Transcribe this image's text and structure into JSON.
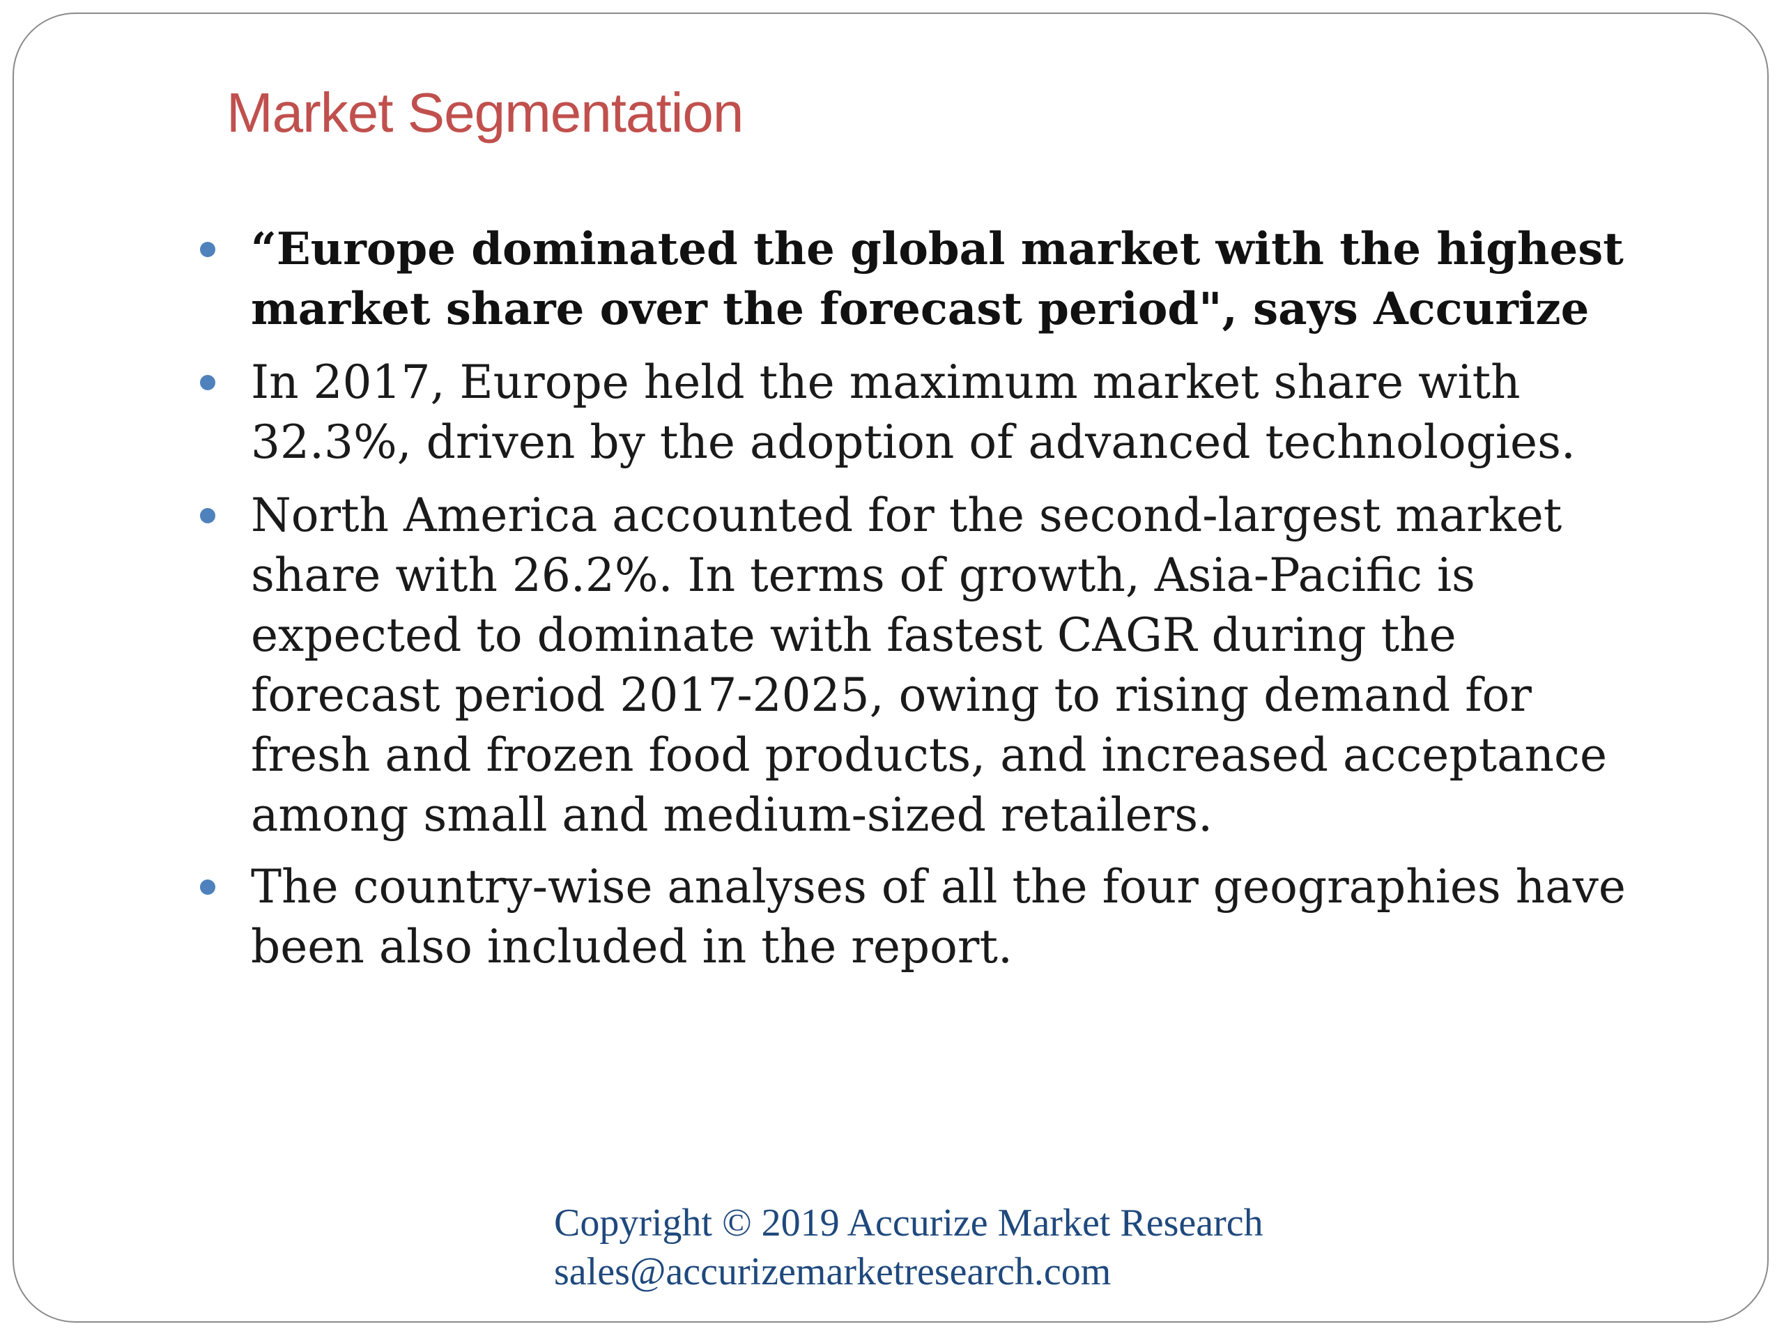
{
  "slide": {
    "title": "Market Segmentation",
    "bullets": [
      {
        "text": "“Europe dominated the global market with the highest\nmarket share over the forecast period\", says Accurize",
        "bold": true
      },
      {
        "text": "In 2017, Europe held the maximum market share with\n32.3%, driven by the adoption of advanced technologies.",
        "bold": false
      },
      {
        "text": "North America accounted for the second-largest market\nshare with 26.2%. In terms of growth, Asia-Pacific is\nexpected to dominate with fastest CAGR during the\nforecast period 2017-2025, owing to rising demand for\nfresh and frozen food products, and increased acceptance\namong small and medium-sized retailers.",
        "bold": false
      },
      {
        "text": "The country-wise analyses of all the four geographies have\nbeen also included in the report.",
        "bold": false
      }
    ],
    "footer": {
      "copyright": "Copyright © 2019 Accurize Market Research",
      "email": "sales@accurizemarketresearch.com"
    }
  },
  "colors": {
    "title": "#c0504d",
    "bullet": "#4f81bd",
    "footer": "#1f497d",
    "frame_border": "#8a8a8a"
  }
}
